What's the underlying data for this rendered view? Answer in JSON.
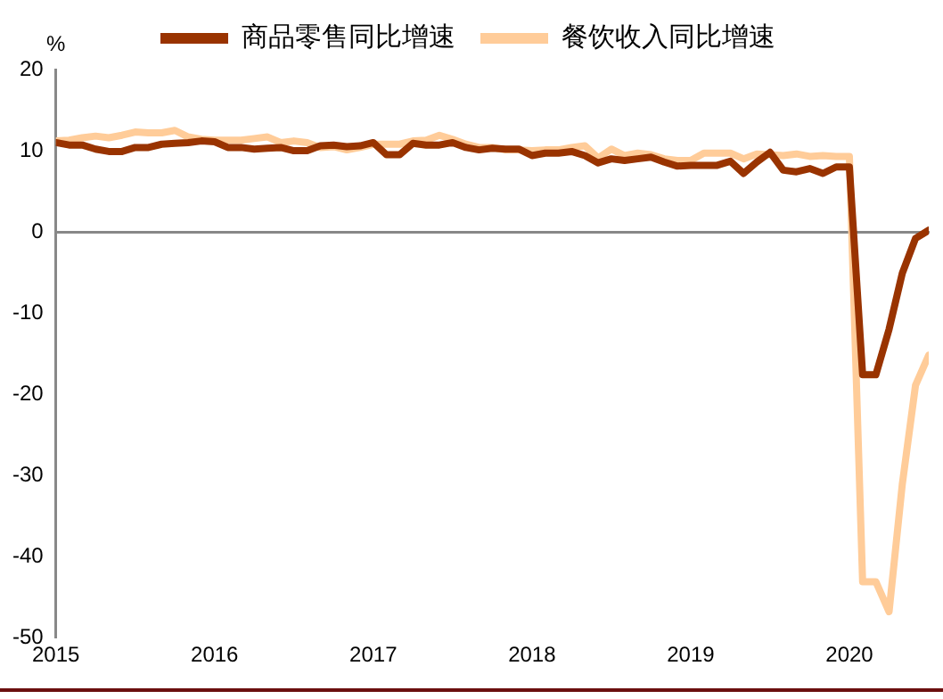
{
  "chart_data": {
    "type": "line",
    "ylabel": "%",
    "legend": "top",
    "marker": "none",
    "line_style": "solid",
    "xlim": [
      "2015-01",
      "2020-07"
    ],
    "xticks": [
      "2015",
      "2016",
      "2017",
      "2018",
      "2019",
      "2020"
    ],
    "ylim": [
      -50,
      20
    ],
    "yticks": [
      -50,
      -40,
      -30,
      -20,
      -10,
      0,
      10,
      20
    ],
    "x": [
      "2015-01",
      "2015-02",
      "2015-03",
      "2015-04",
      "2015-05",
      "2015-06",
      "2015-07",
      "2015-08",
      "2015-09",
      "2015-10",
      "2015-11",
      "2015-12",
      "2016-01",
      "2016-02",
      "2016-03",
      "2016-04",
      "2016-05",
      "2016-06",
      "2016-07",
      "2016-08",
      "2016-09",
      "2016-10",
      "2016-11",
      "2016-12",
      "2017-01",
      "2017-02",
      "2017-03",
      "2017-04",
      "2017-05",
      "2017-06",
      "2017-07",
      "2017-08",
      "2017-09",
      "2017-10",
      "2017-11",
      "2017-12",
      "2018-01",
      "2018-02",
      "2018-03",
      "2018-04",
      "2018-05",
      "2018-06",
      "2018-07",
      "2018-08",
      "2018-09",
      "2018-10",
      "2018-11",
      "2018-12",
      "2019-01",
      "2019-02",
      "2019-03",
      "2019-04",
      "2019-05",
      "2019-06",
      "2019-07",
      "2019-08",
      "2019-09",
      "2019-10",
      "2019-11",
      "2019-12",
      "2020-01",
      "2020-02",
      "2020-03",
      "2020-04",
      "2020-05",
      "2020-06",
      "2020-07"
    ],
    "series": [
      {
        "name": "商品零售同比增速",
        "color": "#993300",
        "values": [
          11,
          10.7,
          10.7,
          10.2,
          9.9,
          9.9,
          10.4,
          10.4,
          10.8,
          10.9,
          11,
          11.2,
          11.1,
          10.4,
          10.4,
          10.2,
          10.3,
          10.4,
          10,
          10,
          10.6,
          10.7,
          10.5,
          10.6,
          11,
          9.5,
          9.5,
          10.9,
          10.7,
          10.7,
          11,
          10.4,
          10.1,
          10.3,
          10.2,
          10.2,
          9.4,
          9.7,
          9.7,
          9.9,
          9.4,
          8.5,
          9,
          8.8,
          9,
          9.2,
          8.6,
          8.1,
          8.2,
          8.2,
          8.2,
          8.7,
          7.2,
          8.6,
          9.8,
          7.6,
          7.4,
          7.8,
          7.2,
          8,
          8,
          -17.6,
          -17.6,
          -12,
          -5.1,
          -0.8,
          0.2
        ]
      },
      {
        "name": "餐饮收入同比增速",
        "color": "#ffcc99",
        "values": [
          11.2,
          11.3,
          11.6,
          11.8,
          11.6,
          11.9,
          12.3,
          12.2,
          12.2,
          12.5,
          11.7,
          11.4,
          11.3,
          11.3,
          11.3,
          11.5,
          11.7,
          11,
          11.2,
          11,
          10.4,
          10.5,
          10.1,
          10.4,
          10.8,
          10.8,
          10.8,
          11.2,
          11.3,
          11.9,
          11.4,
          10.8,
          10.4,
          10.4,
          10.1,
          10.1,
          10,
          10.1,
          10.1,
          10.4,
          10.6,
          9.1,
          10.2,
          9.4,
          9.7,
          9.5,
          9,
          8.8,
          8.8,
          9.7,
          9.7,
          9.7,
          9,
          9.6,
          9.5,
          9.4,
          9.6,
          9.3,
          9.4,
          9.3,
          9.3,
          -43.1,
          -43.1,
          -46.8,
          -31.1,
          -18.9,
          -15.2
        ]
      }
    ]
  }
}
